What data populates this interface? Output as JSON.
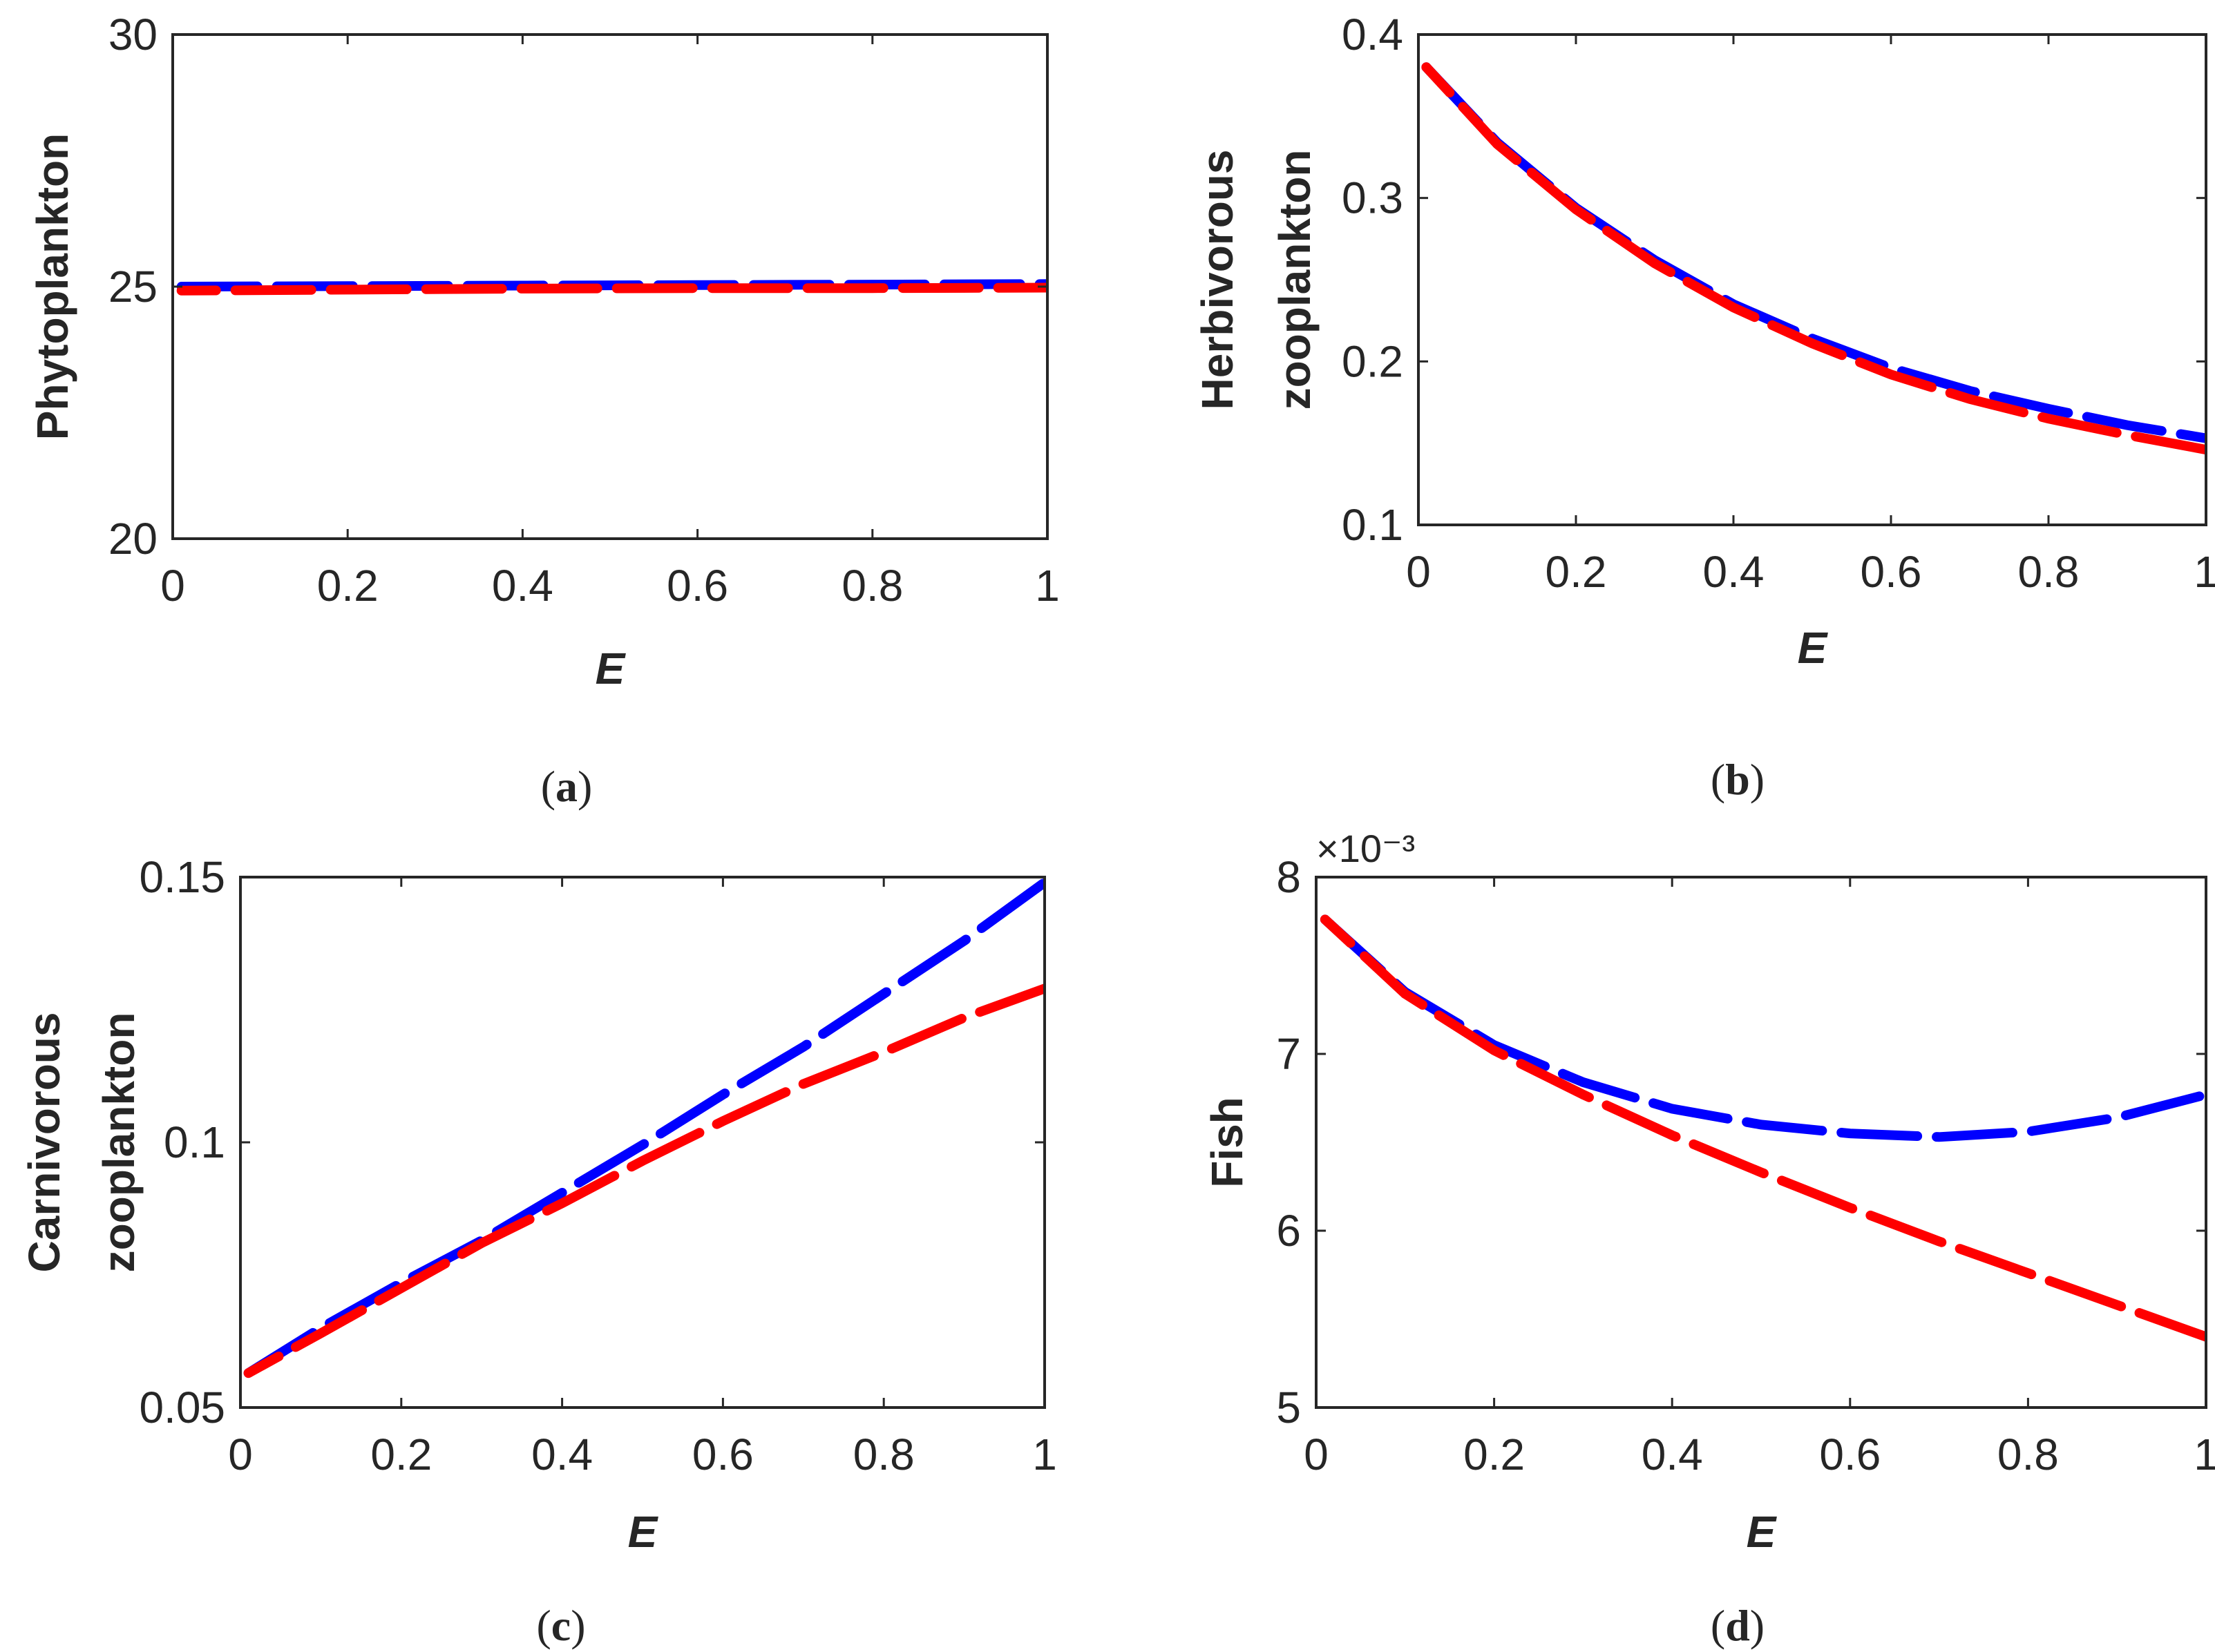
{
  "colors": {
    "series_blue": "#0000ff",
    "series_red": "#ff0000",
    "axis": "#262626"
  },
  "chart_data": [
    {
      "type": "line",
      "panel": "a",
      "caption": "(a)",
      "caption_letter": "a",
      "xlabel": "E",
      "ylabel_lines": [
        "Phytoplankton"
      ],
      "xlim": [
        0,
        1
      ],
      "ylim": [
        20,
        30
      ],
      "xticks": [
        0,
        0.2,
        0.4,
        0.6,
        0.8,
        1
      ],
      "xtick_labels": [
        "0",
        "0.2",
        "0.4",
        "0.6",
        "0.8",
        "1"
      ],
      "yticks": [
        20,
        25,
        30
      ],
      "ytick_labels": [
        "20",
        "25",
        "30"
      ],
      "series": [
        {
          "color_key": "series_blue",
          "x": [
            0.01,
            0.2,
            0.4,
            0.6,
            0.8,
            1.0
          ],
          "values": [
            25.0,
            25.01,
            25.02,
            25.03,
            25.04,
            25.05
          ]
        },
        {
          "color_key": "series_red",
          "x": [
            0.01,
            0.2,
            0.4,
            0.6,
            0.8,
            1.0
          ],
          "values": [
            24.92,
            24.94,
            24.96,
            24.97,
            24.97,
            24.98
          ]
        }
      ]
    },
    {
      "type": "line",
      "panel": "b",
      "caption": "(b)",
      "caption_letter": "b",
      "xlabel": "E",
      "ylabel_lines": [
        "Herbivorous",
        "zooplankton"
      ],
      "xlim": [
        0,
        1
      ],
      "ylim": [
        0.1,
        0.4
      ],
      "xticks": [
        0,
        0.2,
        0.4,
        0.6,
        0.8,
        1
      ],
      "xtick_labels": [
        "0",
        "0.2",
        "0.4",
        "0.6",
        "0.8",
        "1"
      ],
      "yticks": [
        0.1,
        0.2,
        0.3,
        0.4
      ],
      "ytick_labels": [
        "0.1",
        "0.2",
        "0.3",
        "0.4"
      ],
      "series": [
        {
          "color_key": "series_blue",
          "x": [
            0.01,
            0.1,
            0.2,
            0.3,
            0.4,
            0.5,
            0.6,
            0.7,
            0.8,
            0.9,
            1.0
          ],
          "values": [
            0.38,
            0.334,
            0.294,
            0.262,
            0.235,
            0.214,
            0.196,
            0.182,
            0.171,
            0.161,
            0.153
          ]
        },
        {
          "color_key": "series_red",
          "x": [
            0.01,
            0.1,
            0.2,
            0.3,
            0.4,
            0.5,
            0.6,
            0.7,
            0.8,
            0.9,
            1.0
          ],
          "values": [
            0.38,
            0.333,
            0.293,
            0.26,
            0.233,
            0.211,
            0.192,
            0.177,
            0.165,
            0.155,
            0.146
          ]
        }
      ]
    },
    {
      "type": "line",
      "panel": "c",
      "caption": "(c)",
      "caption_letter": "c",
      "xlabel": "E",
      "ylabel_lines": [
        "Carnivorous",
        "zooplankton"
      ],
      "xlim": [
        0,
        1
      ],
      "ylim": [
        0.05,
        0.15
      ],
      "xticks": [
        0,
        0.2,
        0.4,
        0.6,
        0.8,
        1
      ],
      "xtick_labels": [
        "0",
        "0.2",
        "0.4",
        "0.6",
        "0.8",
        "1"
      ],
      "yticks": [
        0.05,
        0.1,
        0.15
      ],
      "ytick_labels": [
        "0.05",
        "0.1",
        "0.15"
      ],
      "series": [
        {
          "color_key": "series_blue",
          "x": [
            0.01,
            0.1,
            0.2,
            0.3,
            0.4,
            0.5,
            0.6,
            0.7,
            0.8,
            0.9,
            1.0
          ],
          "values": [
            0.0565,
            0.065,
            0.0735,
            0.0815,
            0.0905,
            0.0995,
            0.109,
            0.118,
            0.128,
            0.138,
            0.149
          ]
        },
        {
          "color_key": "series_red",
          "x": [
            0.01,
            0.1,
            0.2,
            0.3,
            0.4,
            0.5,
            0.6,
            0.7,
            0.8,
            0.9,
            1.0
          ],
          "values": [
            0.0565,
            0.064,
            0.0725,
            0.081,
            0.0885,
            0.0965,
            0.104,
            0.111,
            0.117,
            0.1235,
            0.129
          ]
        }
      ]
    },
    {
      "type": "line",
      "panel": "d",
      "caption": "(d)",
      "caption_letter": "d",
      "xlabel": "E",
      "ylabel_lines": [
        "Fish"
      ],
      "exponent_label": "×10⁻³",
      "xlim": [
        0,
        1
      ],
      "ylim": [
        5,
        8
      ],
      "xticks": [
        0,
        0.2,
        0.4,
        0.6,
        0.8,
        1
      ],
      "xtick_labels": [
        "0",
        "0.2",
        "0.4",
        "0.6",
        "0.8",
        "1"
      ],
      "yticks": [
        5,
        6,
        7,
        8
      ],
      "ytick_labels": [
        "5",
        "6",
        "7",
        "8"
      ],
      "series": [
        {
          "color_key": "series_blue",
          "x": [
            0.01,
            0.1,
            0.2,
            0.3,
            0.4,
            0.5,
            0.6,
            0.7,
            0.8,
            0.9,
            1.0
          ],
          "values": [
            7.76,
            7.35,
            7.05,
            6.84,
            6.69,
            6.6,
            6.55,
            6.53,
            6.56,
            6.64,
            6.77
          ]
        },
        {
          "color_key": "series_red",
          "x": [
            0.01,
            0.1,
            0.2,
            0.3,
            0.4,
            0.5,
            0.6,
            0.7,
            0.8,
            0.9,
            1.0
          ],
          "values": [
            7.76,
            7.34,
            7.02,
            6.77,
            6.54,
            6.33,
            6.13,
            5.94,
            5.76,
            5.58,
            5.4
          ]
        }
      ]
    }
  ]
}
